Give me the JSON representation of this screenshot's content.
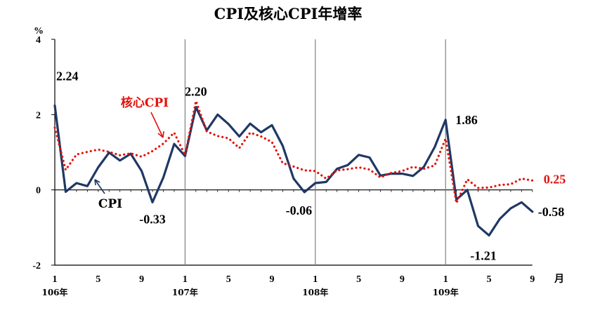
{
  "chart_data": {
    "type": "line",
    "title": "CPI及核心CPI年增率",
    "ylabel": "%",
    "ylim": [
      -2,
      4
    ],
    "yticks": [
      -2,
      0,
      2,
      4
    ],
    "x_tick_labels": [
      "1",
      "5",
      "9",
      "1",
      "5",
      "9",
      "1",
      "5",
      "9",
      "1",
      "5",
      "9"
    ],
    "x_unit_label": "月",
    "year_labels": [
      "106年",
      "107年",
      "108年",
      "109年"
    ],
    "grid": false,
    "series": [
      {
        "name": "CPI",
        "color": "#1f3864",
        "style": "solid",
        "values": [
          2.24,
          -0.05,
          0.18,
          0.1,
          0.6,
          0.99,
          0.78,
          0.96,
          0.5,
          -0.33,
          0.33,
          1.22,
          0.9,
          2.2,
          1.58,
          2.0,
          1.75,
          1.42,
          1.76,
          1.53,
          1.72,
          1.17,
          0.3,
          -0.06,
          0.18,
          0.21,
          0.56,
          0.66,
          0.93,
          0.86,
          0.38,
          0.43,
          0.43,
          0.37,
          0.61,
          1.14,
          1.86,
          -0.26,
          0.0,
          -0.96,
          -1.21,
          -0.77,
          -0.49,
          -0.33,
          -0.58
        ]
      },
      {
        "name": "核心CPI",
        "color": "#e3120b",
        "style": "dotted",
        "values": [
          1.65,
          0.53,
          0.94,
          1.01,
          1.07,
          1.01,
          0.92,
          0.97,
          0.88,
          1.03,
          1.23,
          1.52,
          0.92,
          2.36,
          1.55,
          1.43,
          1.37,
          1.11,
          1.52,
          1.42,
          1.27,
          0.71,
          0.62,
          0.52,
          0.5,
          0.3,
          0.52,
          0.55,
          0.6,
          0.54,
          0.33,
          0.45,
          0.5,
          0.61,
          0.56,
          0.65,
          1.36,
          -0.35,
          0.28,
          0.05,
          0.06,
          0.13,
          0.15,
          0.3,
          0.25
        ]
      }
    ],
    "annotations": [
      {
        "series": 0,
        "index": 0,
        "text": "2.24"
      },
      {
        "series": 0,
        "index": 9,
        "text": "-0.33"
      },
      {
        "series": 0,
        "index": 13,
        "text": "2.20"
      },
      {
        "series": 0,
        "index": 23,
        "text": "-0.06"
      },
      {
        "series": 0,
        "index": 36,
        "text": "1.86"
      },
      {
        "series": 0,
        "index": 40,
        "text": "-1.21"
      },
      {
        "series": 0,
        "index": 44,
        "text": "-0.58"
      },
      {
        "series": 1,
        "index": 44,
        "text": "0.25"
      }
    ],
    "series_labels": [
      {
        "series": 0,
        "text": "CPI"
      },
      {
        "series": 1,
        "text": "核心CPI"
      }
    ]
  }
}
